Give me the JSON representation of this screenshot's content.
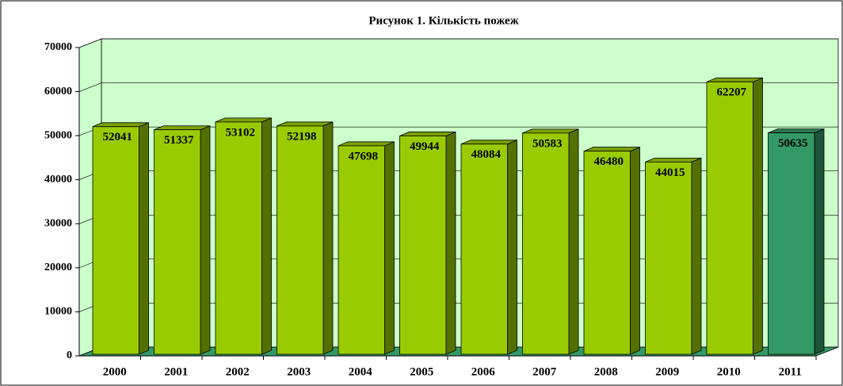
{
  "chart_data": {
    "type": "bar3d",
    "title": "Рисунок 1. Кількість пожеж",
    "categories": [
      "2000",
      "2001",
      "2002",
      "2003",
      "2004",
      "2005",
      "2006",
      "2007",
      "2008",
      "2009",
      "2010",
      "2011"
    ],
    "values": [
      52041,
      51337,
      53102,
      52198,
      47698,
      49944,
      48084,
      50583,
      46480,
      44015,
      62207,
      50635
    ],
    "colors": [
      "#99cc00",
      "#99cc00",
      "#99cc00",
      "#99cc00",
      "#99cc00",
      "#99cc00",
      "#99cc00",
      "#99cc00",
      "#99cc00",
      "#99cc00",
      "#99cc00",
      "#339966"
    ],
    "ylim": [
      0,
      70000
    ],
    "yticks": [
      0,
      10000,
      20000,
      30000,
      40000,
      50000,
      60000,
      70000
    ],
    "grid": true
  }
}
